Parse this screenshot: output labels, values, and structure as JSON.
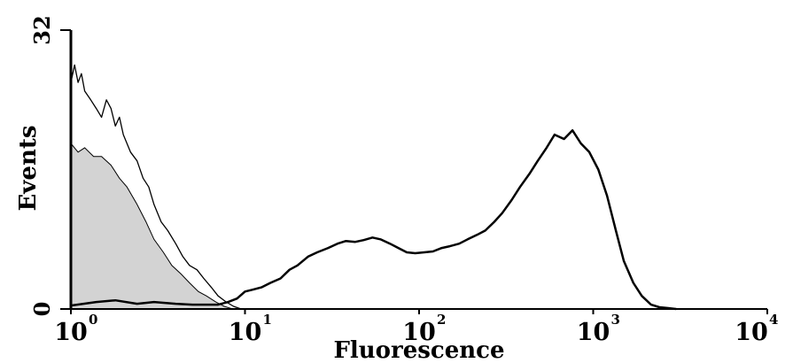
{
  "chart_data": {
    "type": "area",
    "xlabel": "Fluorescence",
    "ylabel": "Events",
    "x_scale": "log",
    "xlim": [
      1,
      10000
    ],
    "ylim": [
      0,
      32
    ],
    "x_ticks": [
      {
        "base": "10",
        "exp": "0",
        "value": 1
      },
      {
        "base": "10",
        "exp": "1",
        "value": 10
      },
      {
        "base": "10",
        "exp": "2",
        "value": 100
      },
      {
        "base": "10",
        "exp": "3",
        "value": 1000
      },
      {
        "base": "10",
        "exp": "4",
        "value": 10000
      }
    ],
    "y_ticks": [
      {
        "label": "0",
        "value": 0
      },
      {
        "label": "32",
        "value": 32
      }
    ],
    "grid": false,
    "legend": "none",
    "colors": {
      "line": "#000000",
      "fill": "#d3d3d3"
    },
    "series": [
      {
        "style": "gray-filled",
        "x": [
          1.0,
          1.1,
          1.2,
          1.35,
          1.5,
          1.7,
          1.9,
          2.1,
          2.4,
          2.7,
          3.0,
          3.4,
          3.8,
          4.3,
          4.8,
          5.4,
          6.0,
          6.8,
          7.6,
          8.5
        ],
        "y": [
          19,
          18,
          18.5,
          17.5,
          17.5,
          16.5,
          15,
          14,
          12,
          10,
          8,
          6.5,
          5,
          4,
          3,
          2,
          1.5,
          0.8,
          0.3,
          0
        ]
      },
      {
        "style": "thin-outline",
        "x": [
          1.0,
          1.05,
          1.1,
          1.15,
          1.2,
          1.3,
          1.4,
          1.5,
          1.6,
          1.7,
          1.8,
          1.9,
          2.0,
          2.2,
          2.4,
          2.6,
          2.8,
          3.0,
          3.3,
          3.6,
          4.0,
          4.4,
          4.8,
          5.3,
          5.8,
          6.4,
          7.0,
          7.8,
          8.6,
          9.5
        ],
        "y": [
          26,
          28,
          26,
          27,
          25,
          24,
          23,
          22,
          24,
          23,
          21,
          22,
          20,
          18,
          17,
          15,
          14,
          12,
          10,
          9,
          7.5,
          6,
          5,
          4.5,
          3.5,
          2.5,
          1.5,
          0.8,
          0.3,
          0
        ]
      },
      {
        "style": "thick-outline",
        "x": [
          1.0,
          1.4,
          1.8,
          2.4,
          3.0,
          4.0,
          5.0,
          6.0,
          7.0,
          8.0,
          9.0,
          10,
          11,
          12.5,
          14,
          16,
          18,
          20,
          23,
          26,
          30,
          34,
          38,
          43,
          48,
          54,
          60,
          68,
          76,
          85,
          95,
          107,
          120,
          135,
          150,
          170,
          190,
          215,
          240,
          270,
          300,
          340,
          380,
          430,
          480,
          540,
          600,
          680,
          760,
          850,
          950,
          1070,
          1200,
          1350,
          1500,
          1700,
          1900,
          2150,
          2400,
          2700,
          3000
        ],
        "y": [
          0.4,
          0.8,
          1.0,
          0.6,
          0.8,
          0.6,
          0.5,
          0.5,
          0.5,
          0.8,
          1.2,
          2.0,
          2.2,
          2.5,
          3.0,
          3.5,
          4.5,
          5.0,
          6.0,
          6.5,
          7.0,
          7.5,
          7.8,
          7.7,
          7.9,
          8.2,
          8.0,
          7.5,
          7.0,
          6.5,
          6.4,
          6.5,
          6.6,
          7.0,
          7.2,
          7.5,
          8.0,
          8.5,
          9.0,
          10.0,
          11.0,
          12.5,
          14.0,
          15.5,
          17.0,
          18.5,
          20.0,
          19.5,
          20.5,
          19.0,
          18.0,
          16.0,
          13.0,
          9.0,
          5.5,
          3.0,
          1.5,
          0.5,
          0.2,
          0.1,
          0
        ]
      }
    ]
  }
}
